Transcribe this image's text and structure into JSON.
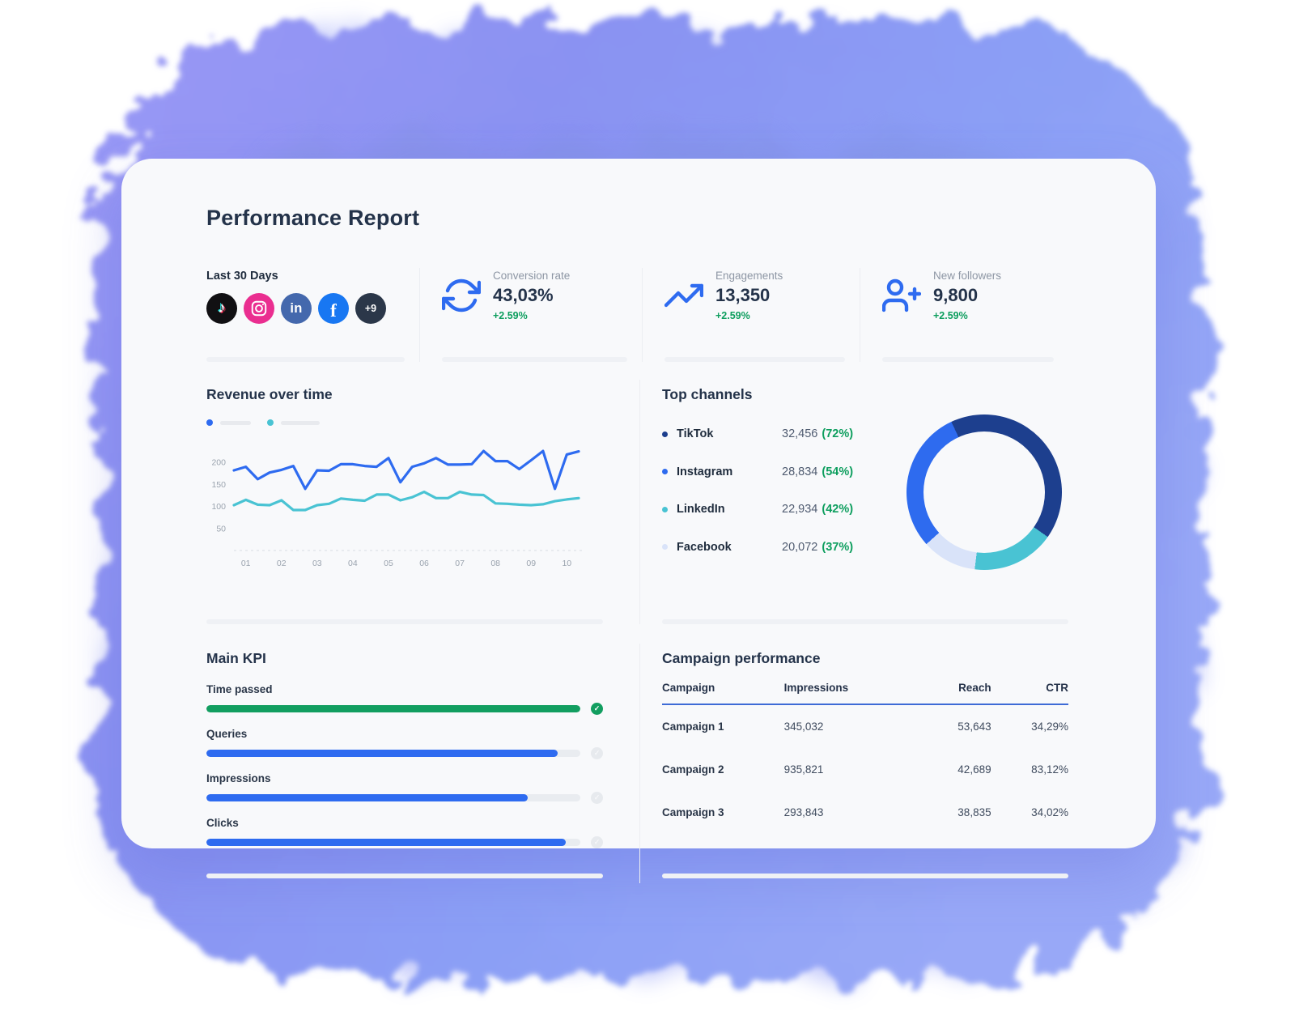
{
  "page": {
    "title": "Performance Report"
  },
  "period": {
    "label": "Last 30 Days",
    "networks": [
      "tiktok",
      "instagram",
      "linkedin",
      "facebook"
    ],
    "more_label": "+9"
  },
  "stats": {
    "cards": [
      {
        "icon": "refresh-icon",
        "label": "Conversion rate",
        "value": "43,03%",
        "delta": "+2.59%"
      },
      {
        "icon": "trending-up-icon",
        "label": "Engagements",
        "value": "13,350",
        "delta": "+2.59%"
      },
      {
        "icon": "user-plus-icon",
        "label": "New followers",
        "value": "9,800",
        "delta": "+2.59%"
      }
    ],
    "accent_blue": "#2e6bf0",
    "delta_green": "#0d9e5e"
  },
  "revenue": {
    "title": "Revenue over time"
  },
  "channels": {
    "title": "Top channels",
    "items": [
      {
        "name": "TikTok",
        "value": "32,456",
        "percent": "(72%)",
        "color": "#1d3f8e"
      },
      {
        "name": "Instagram",
        "value": "28,834",
        "percent": "(54%)",
        "color": "#2e6bef"
      },
      {
        "name": "LinkedIn",
        "value": "22,934",
        "percent": "(42%)",
        "color": "#49c3d3"
      },
      {
        "name": "Facebook",
        "value": "20,072",
        "percent": "(37%)",
        "color": "#d9e3f9"
      }
    ]
  },
  "kpi": {
    "title": "Main KPI",
    "items": [
      {
        "label": "Time passed",
        "percent": 100,
        "status": "complete",
        "color": "#129e60"
      },
      {
        "label": "Queries",
        "percent": 94,
        "status": "in-progress",
        "color": "#2e6bf0"
      },
      {
        "label": "Impressions",
        "percent": 86,
        "status": "in-progress",
        "color": "#2e6bf0"
      },
      {
        "label": "Clicks",
        "percent": 96,
        "status": "in-progress",
        "color": "#2e6bf0"
      }
    ]
  },
  "campaigns": {
    "title": "Campaign performance",
    "columns": [
      "Campaign",
      "Impressions",
      "Reach",
      "CTR"
    ],
    "rows": [
      [
        "Campaign 1",
        "345,032",
        "53,643",
        "34,29%"
      ],
      [
        "Campaign 2",
        "935,821",
        "42,689",
        "83,12%"
      ],
      [
        "Campaign 3",
        "293,843",
        "38,835",
        "34,02%"
      ]
    ]
  },
  "chart_data": [
    {
      "type": "line",
      "title": "Revenue over time",
      "ylim": [
        0,
        250
      ],
      "y_ticks": [
        200,
        150,
        100,
        50
      ],
      "x_tick_labels": [
        "01",
        "02",
        "03",
        "04",
        "05",
        "06",
        "07",
        "08",
        "09",
        "10"
      ],
      "grid": "dashed baseline only",
      "legend": "two unlabeled skeleton entries, top-left",
      "series": [
        {
          "name": "series-blue",
          "color": "#2e6bf0",
          "values": [
            182,
            190,
            162,
            177,
            183,
            192,
            140,
            182,
            181,
            196,
            196,
            192,
            190,
            210,
            155,
            190,
            198,
            210,
            195,
            195,
            196,
            226,
            203,
            203,
            185,
            205,
            226,
            140,
            218,
            225
          ]
        },
        {
          "name": "series-teal",
          "color": "#49c3d3",
          "values": [
            103,
            115,
            104,
            103,
            114,
            92,
            92,
            103,
            106,
            118,
            115,
            113,
            127,
            127,
            114,
            121,
            133,
            119,
            119,
            133,
            127,
            126,
            107,
            106,
            104,
            103,
            105,
            112,
            116,
            119
          ]
        }
      ]
    },
    {
      "type": "pie",
      "subtype": "donut",
      "title": "Top channels",
      "start_deg": -25,
      "segments": [
        {
          "label": "TikTok",
          "value": 32456,
          "pct_label": "72%",
          "arc_pct": 41.7,
          "color": "#1d3f8e"
        },
        {
          "label": "LinkedIn",
          "value": 22934,
          "pct_label": "42%",
          "arc_pct": 17.2,
          "color": "#49c3d3"
        },
        {
          "label": "Facebook",
          "value": 20072,
          "pct_label": "37%",
          "arc_pct": 11.4,
          "color": "#d9e3f9"
        },
        {
          "label": "Instagram",
          "value": 28834,
          "pct_label": "54%",
          "arc_pct": 29.7,
          "color": "#2e6bef"
        }
      ]
    },
    {
      "type": "table",
      "title": "Campaign performance",
      "columns": [
        "Campaign",
        "Impressions",
        "Reach",
        "CTR"
      ],
      "rows": [
        [
          "Campaign 1",
          "345,032",
          "53,643",
          "34,29%"
        ],
        [
          "Campaign 2",
          "935,821",
          "42,689",
          "83,12%"
        ],
        [
          "Campaign 3",
          "293,843",
          "38,835",
          "34,02%"
        ]
      ]
    }
  ]
}
